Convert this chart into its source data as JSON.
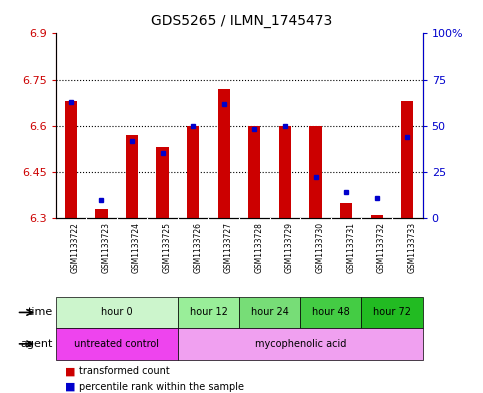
{
  "title": "GDS5265 / ILMN_1745473",
  "samples": [
    "GSM1133722",
    "GSM1133723",
    "GSM1133724",
    "GSM1133725",
    "GSM1133726",
    "GSM1133727",
    "GSM1133728",
    "GSM1133729",
    "GSM1133730",
    "GSM1133731",
    "GSM1133732",
    "GSM1133733"
  ],
  "red_values": [
    6.68,
    6.33,
    6.57,
    6.53,
    6.6,
    6.72,
    6.6,
    6.6,
    6.6,
    6.35,
    6.31,
    6.68
  ],
  "blue_values": [
    63,
    10,
    42,
    35,
    50,
    62,
    48,
    50,
    22,
    14,
    11,
    44
  ],
  "ylim_left": [
    6.3,
    6.9
  ],
  "ylim_right": [
    0,
    100
  ],
  "yticks_left": [
    6.3,
    6.45,
    6.6,
    6.75,
    6.9
  ],
  "yticks_right": [
    0,
    25,
    50,
    75,
    100
  ],
  "ytick_labels_left": [
    "6.3",
    "6.45",
    "6.6",
    "6.75",
    "6.9"
  ],
  "ytick_labels_right": [
    "0",
    "25",
    "50",
    "75",
    "100%"
  ],
  "hlines": [
    6.45,
    6.6,
    6.75
  ],
  "bar_bottom": 6.3,
  "time_groups": [
    {
      "label": "hour 0",
      "start": 0,
      "end": 4,
      "color": "#ccf5cc"
    },
    {
      "label": "hour 12",
      "start": 4,
      "end": 6,
      "color": "#99ee99"
    },
    {
      "label": "hour 24",
      "start": 6,
      "end": 8,
      "color": "#77dd77"
    },
    {
      "label": "hour 48",
      "start": 8,
      "end": 10,
      "color": "#44cc44"
    },
    {
      "label": "hour 72",
      "start": 10,
      "end": 12,
      "color": "#22bb22"
    }
  ],
  "agent_groups": [
    {
      "label": "untreated control",
      "start": 0,
      "end": 4,
      "color": "#ee44ee"
    },
    {
      "label": "mycophenolic acid",
      "start": 4,
      "end": 12,
      "color": "#f0a0f0"
    }
  ],
  "red_color": "#cc0000",
  "blue_color": "#0000cc",
  "axis_left_color": "#cc0000",
  "axis_right_color": "#0000cc",
  "bar_width": 0.4,
  "xlabel_bg_color": "#cccccc",
  "plot_bg_color": "#ffffff"
}
